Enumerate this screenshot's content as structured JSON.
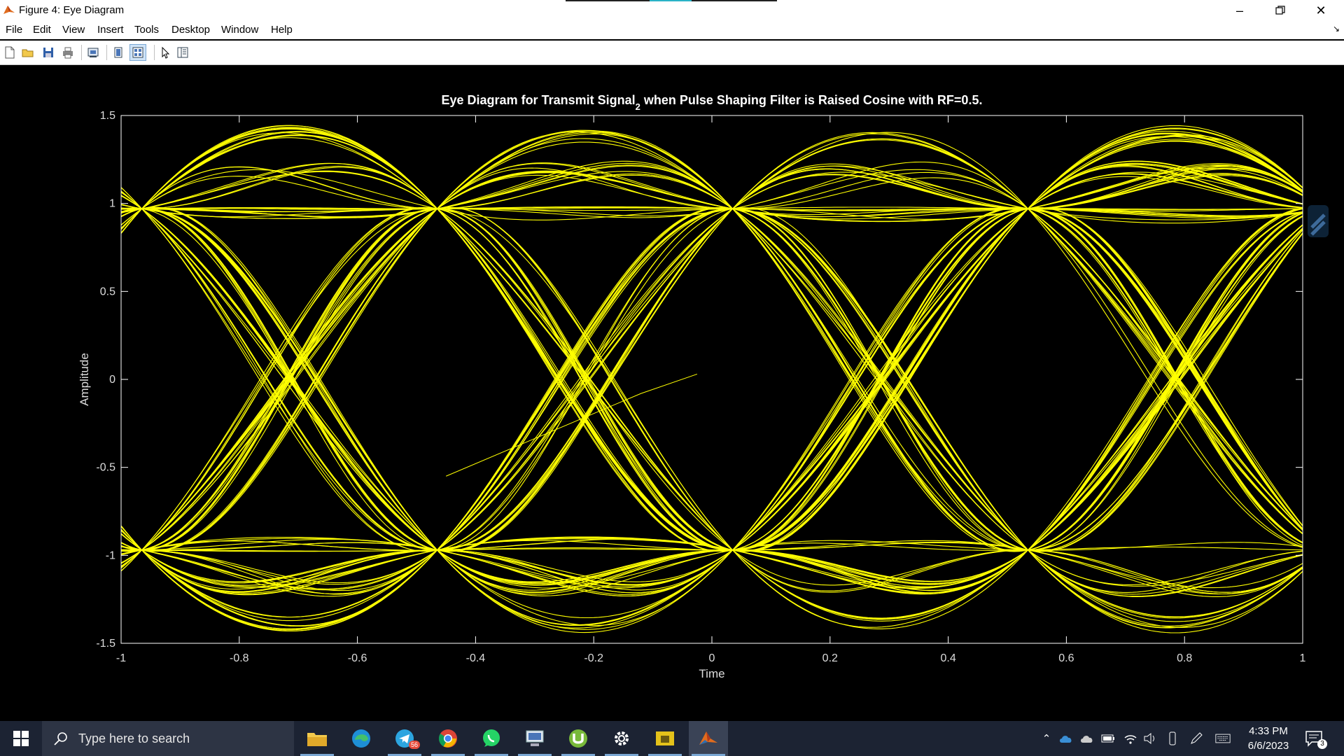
{
  "window": {
    "title": "Figure 4: Eye Diagram",
    "controls": [
      "minimize",
      "restore",
      "close"
    ]
  },
  "menu": [
    "File",
    "Edit",
    "View",
    "Insert",
    "Tools",
    "Desktop",
    "Window",
    "Help"
  ],
  "toolbar": {
    "buttons": [
      "new-figure-icon",
      "open-file-icon",
      "save-icon",
      "print-icon",
      "link-plot-icon",
      "hide-plot-tools-icon",
      "show-plot-tools-icon",
      "edit-plot-arrow-icon",
      "property-inspector-icon"
    ]
  },
  "chart_data": {
    "type": "line",
    "title_main": "Eye Diagram for Transmit Signal",
    "title_subscript": "2",
    "title_rest": " when Pulse Shaping Filter is Raised Cosine with RF=0.5.",
    "xlabel": "Time",
    "ylabel": "Amplitude",
    "xlim": [
      -1,
      1
    ],
    "ylim": [
      -1.5,
      1.5
    ],
    "xticks": [
      "-1",
      "-0.8",
      "-0.6",
      "-0.4",
      "-0.2",
      "0",
      "0.2",
      "0.4",
      "0.6",
      "0.8",
      "1"
    ],
    "yticks": [
      "1.5",
      "1",
      "0.5",
      "0",
      "-0.5",
      "-1",
      "-1.5"
    ],
    "grid": false,
    "background": "#000000",
    "axes_color": "#ffffff",
    "line_color": "#ffff00",
    "symbol_period": 0.5,
    "symbol_levels": [
      -1,
      1
    ],
    "rolloff": 0.5,
    "overshoot_range": [
      -1.27,
      1.27
    ]
  },
  "taskbar": {
    "search_placeholder": "Type here to search",
    "apps": [
      "file-explorer-icon",
      "edge-icon",
      "telegram-icon",
      "chrome-icon",
      "whatsapp-icon",
      "network-app-icon",
      "utorrent-icon",
      "settings-icon",
      "folder-app-icon",
      "matlab-icon"
    ],
    "telegram_badge": "56",
    "time": "4:33 PM",
    "date": "6/6/2023",
    "notification_count": "3"
  }
}
